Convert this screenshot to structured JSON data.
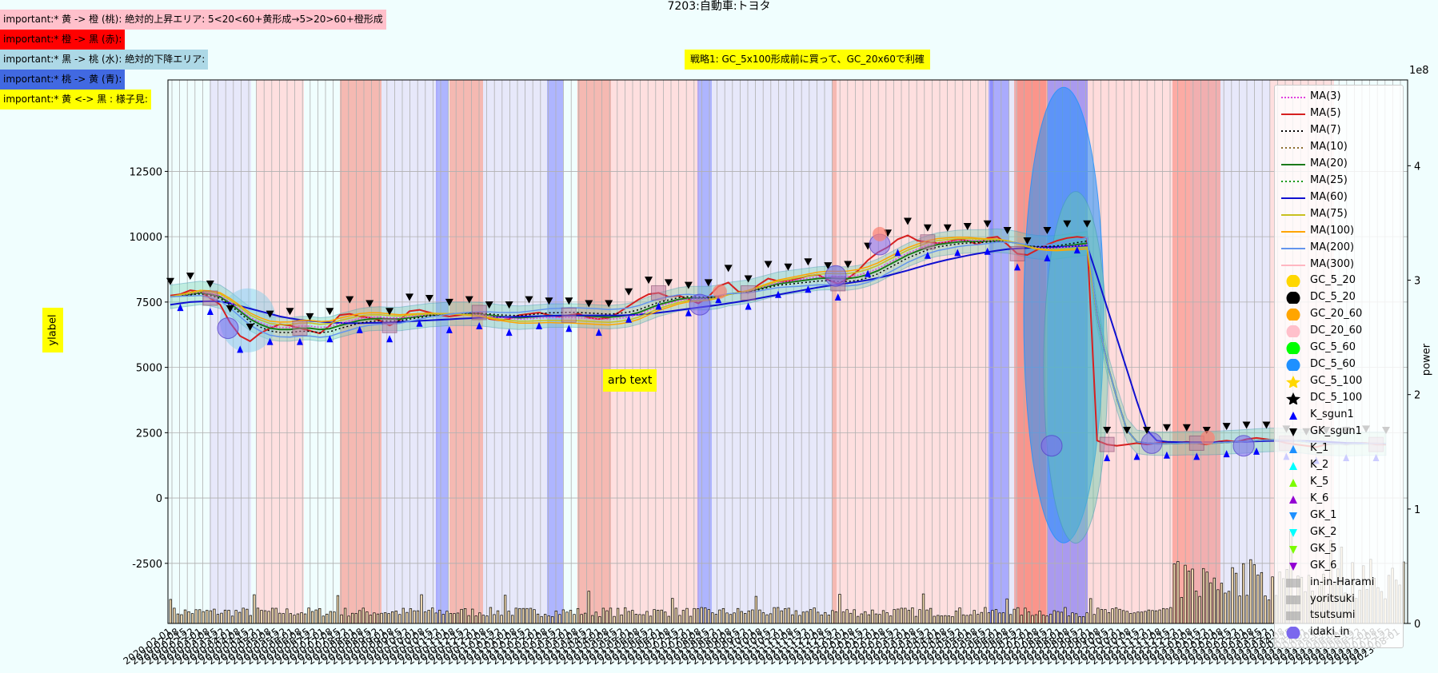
{
  "title": "7203:自動車:トヨタ",
  "notes": [
    {
      "text": "important:* 黄 -> 橙 (桃): 絶対的上昇エリア: 5<20<60+黄形成→5>20>60+橙形成",
      "bg": "#ffc0cb"
    },
    {
      "text": "important:* 橙 -> 黒 (赤):",
      "bg": "#ff0000"
    },
    {
      "text": "important:* 黒 -> 桃 (水): 絶対的下降エリア:",
      "bg": "#add8e6"
    },
    {
      "text": "important:* 桃 -> 黄 (青):",
      "bg": "#4169e1"
    },
    {
      "text": "important:* 黄 <-> 黒 : 様子見:",
      "bg": "#ffff00"
    }
  ],
  "strategy_text": "戦略1: GC_5x100形成前に買って、GC_20x60で利確",
  "annotation_text": "arb text",
  "ylabel": "ylabel",
  "y2label": "power",
  "y2_exponent": "1e8",
  "legend": [
    {
      "label": "MA(3)",
      "kind": "line",
      "color": "#e040e0",
      "dash": "2,2"
    },
    {
      "label": "MA(5)",
      "kind": "line",
      "color": "#d62020",
      "dash": ""
    },
    {
      "label": "MA(7)",
      "kind": "line",
      "color": "#000000",
      "dash": "2,3"
    },
    {
      "label": "MA(10)",
      "kind": "line",
      "color": "#8b6d2e",
      "dash": "2,3"
    },
    {
      "label": "MA(20)",
      "kind": "line",
      "color": "#1a7a1a",
      "dash": ""
    },
    {
      "label": "MA(25)",
      "kind": "line",
      "color": "#1a9a1a",
      "dash": "2,3"
    },
    {
      "label": "MA(60)",
      "kind": "line",
      "color": "#1010d0",
      "dash": ""
    },
    {
      "label": "MA(75)",
      "kind": "line",
      "color": "#c8c020",
      "dash": ""
    },
    {
      "label": "MA(100)",
      "kind": "line",
      "color": "#ffa500",
      "dash": ""
    },
    {
      "label": "MA(200)",
      "kind": "line",
      "color": "#6495ed",
      "dash": ""
    },
    {
      "label": "MA(300)",
      "kind": "line",
      "color": "#ffb6c1",
      "dash": ""
    },
    {
      "label": "GC_5_20",
      "kind": "circle",
      "color": "#ffd700"
    },
    {
      "label": "DC_5_20",
      "kind": "circle",
      "color": "#000000"
    },
    {
      "label": "GC_20_60",
      "kind": "circle",
      "color": "#ffa500"
    },
    {
      "label": "DC_20_60",
      "kind": "circle",
      "color": "#ffc0cb"
    },
    {
      "label": "GC_5_60",
      "kind": "circle",
      "color": "#00ff00"
    },
    {
      "label": "DC_5_60",
      "kind": "circle",
      "color": "#1e90ff"
    },
    {
      "label": "GC_5_100",
      "kind": "star",
      "color": "#ffd700"
    },
    {
      "label": "DC_5_100",
      "kind": "star",
      "color": "#000000"
    },
    {
      "label": "K_sgun1",
      "kind": "tri-up",
      "color": "#0000ff"
    },
    {
      "label": "GK_sgun1",
      "kind": "tri-down",
      "color": "#000000"
    },
    {
      "label": "K_1",
      "kind": "tri-up",
      "color": "#1e90ff"
    },
    {
      "label": "K_2",
      "kind": "tri-up",
      "color": "#00ffff"
    },
    {
      "label": "K_5",
      "kind": "tri-up",
      "color": "#7cfc00"
    },
    {
      "label": "K_6",
      "kind": "tri-up",
      "color": "#9400d3"
    },
    {
      "label": "GK_1",
      "kind": "tri-down",
      "color": "#1e90ff"
    },
    {
      "label": "GK_2",
      "kind": "tri-down",
      "color": "#00ffff"
    },
    {
      "label": "GK_5",
      "kind": "tri-down",
      "color": "#7cfc00"
    },
    {
      "label": "GK_6",
      "kind": "tri-down",
      "color": "#9400d3"
    },
    {
      "label": "in-in-Harami",
      "kind": "box",
      "color": "#a0a0a0"
    },
    {
      "label": "yoritsuki",
      "kind": "box",
      "color": "#a0a0a0"
    },
    {
      "label": "tsutsumi",
      "kind": "box",
      "color": "#a0a0a0"
    },
    {
      "label": "idaki_in",
      "kind": "circle",
      "color": "#7b68ee"
    }
  ],
  "chart_data": {
    "type": "line",
    "title": "7203:自動車:トヨタ",
    "ylabel": "ylabel",
    "y2label": "power",
    "ylim": [
      -4800,
      16000
    ],
    "yticks": [
      -2500,
      0,
      2500,
      5000,
      7500,
      10000,
      12500
    ],
    "y2lim": [
      0,
      4.75
    ],
    "y2ticks": [
      0,
      1,
      2,
      3,
      4
    ],
    "y2_scale": "1e8",
    "grid": true,
    "legend_position": "upper right",
    "x_range": [
      "2020-02",
      "2023-05"
    ],
    "series": [
      {
        "name": "MA(5)",
        "color": "#d62020",
        "values": [
          7750,
          7800,
          7950,
          7900,
          7650,
          7400,
          6700,
          6200,
          6000,
          6300,
          6500,
          6650,
          6600,
          6500,
          6400,
          6300,
          6600,
          7000,
          7050,
          6950,
          6900,
          6800,
          6600,
          6800,
          7150,
          7200,
          7100,
          7000,
          6950,
          7000,
          7050,
          7100,
          6850,
          6800,
          6850,
          7000,
          7050,
          7100,
          7000,
          6950,
          7000,
          7050,
          6900,
          6850,
          6900,
          7100,
          7350,
          7600,
          7800,
          7850,
          7700,
          7750,
          7600,
          7450,
          7700,
          8100,
          8250,
          7900,
          7850,
          8150,
          8400,
          8300,
          8300,
          8400,
          8500,
          8550,
          8350,
          8200,
          8400,
          8700,
          9100,
          9400,
          9600,
          9900,
          10050,
          9850,
          9800,
          9750,
          9800,
          9900,
          9850,
          9700,
          9950,
          10000,
          9700,
          9350,
          9300,
          9500,
          9700,
          9850,
          9950,
          10000,
          9950,
          2200,
          2050,
          2000,
          2050,
          2100,
          2050,
          2100,
          2150,
          2100,
          2150,
          2100,
          2050,
          2150,
          2200,
          2150,
          2250,
          2300,
          2250,
          2200,
          2100,
          2050,
          2000,
          1950,
          2050,
          2100,
          2050,
          2100,
          2100,
          2050,
          2050
        ]
      },
      {
        "name": "MA(20)",
        "color": "#1a7a1a",
        "values": [
          7700,
          7750,
          7800,
          7850,
          7800,
          7700,
          7450,
          7150,
          6850,
          6650,
          6500,
          6450,
          6450,
          6500,
          6500,
          6450,
          6480,
          6600,
          6700,
          6800,
          6850,
          6870,
          6850,
          6850,
          6900,
          6950,
          7000,
          7020,
          7050,
          7050,
          7050,
          7040,
          7000,
          6950,
          6920,
          6900,
          6920,
          6950,
          6980,
          6980,
          6990,
          6980,
          6960,
          6940,
          6920,
          6950,
          7000,
          7100,
          7250,
          7400,
          7500,
          7600,
          7650,
          7650,
          7650,
          7700,
          7800,
          7850,
          7900,
          8000,
          8100,
          8200,
          8250,
          8300,
          8350,
          8400,
          8420,
          8400,
          8400,
          8450,
          8550,
          8700,
          8900,
          9100,
          9300,
          9450,
          9600,
          9700,
          9750,
          9800,
          9820,
          9820,
          9830,
          9850,
          9820,
          9750,
          9650,
          9600,
          9580,
          9600,
          9650,
          9700,
          9750,
          7000,
          5200,
          3800,
          2600,
          2150,
          2100,
          2080,
          2080,
          2090,
          2100,
          2100,
          2100,
          2110,
          2130,
          2150,
          2170,
          2200,
          2220,
          2230,
          2220,
          2190,
          2150,
          2100,
          2080,
          2070,
          2060,
          2070,
          2080,
          2080,
          2080
        ]
      },
      {
        "name": "MA(60)",
        "color": "#1010d0",
        "values": [
          7400,
          7450,
          7500,
          7520,
          7530,
          7520,
          7450,
          7350,
          7250,
          7150,
          7050,
          6950,
          6880,
          6820,
          6780,
          6750,
          6720,
          6700,
          6690,
          6690,
          6700,
          6710,
          6720,
          6740,
          6760,
          6780,
          6800,
          6820,
          6840,
          6860,
          6880,
          6900,
          6910,
          6920,
          6930,
          6940,
          6950,
          6960,
          6970,
          6980,
          6985,
          6990,
          6990,
          6990,
          6990,
          6990,
          7000,
          7020,
          7050,
          7090,
          7140,
          7190,
          7240,
          7290,
          7340,
          7390,
          7450,
          7510,
          7570,
          7640,
          7710,
          7780,
          7850,
          7920,
          7990,
          8060,
          8120,
          8170,
          8220,
          8280,
          8340,
          8420,
          8510,
          8610,
          8710,
          8820,
          8930,
          9030,
          9120,
          9200,
          9280,
          9350,
          9410,
          9470,
          9520,
          9550,
          9570,
          9590,
          9600,
          9610,
          9620,
          9640,
          9660,
          8500,
          7300,
          6100,
          4900,
          3700,
          2600,
          2200,
          2150,
          2140,
          2130,
          2130,
          2130,
          2130,
          2140,
          2150,
          2160,
          2170,
          2180,
          2190,
          2195,
          2190,
          2180,
          2170,
          2150,
          2130,
          2110,
          2100,
          2090,
          2085,
          2080
        ]
      }
    ]
  }
}
